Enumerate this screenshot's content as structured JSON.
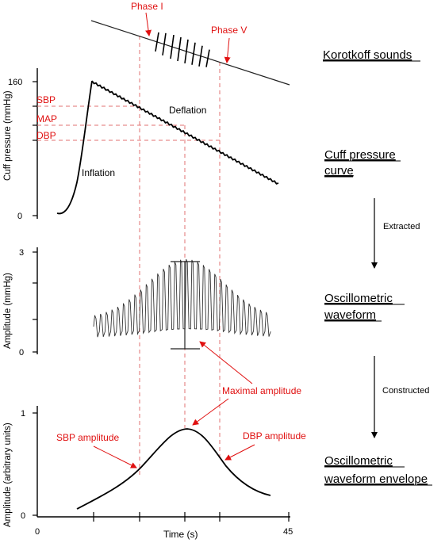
{
  "korotkoff": {
    "phase1_label": "Phase I",
    "phase5_label": "Phase V"
  },
  "cuff": {
    "ytick_160": "160",
    "ytick_0": "0",
    "ylabel": "Cuff pressure (mmHg)",
    "sbp_label": "SBP",
    "map_label": "MAP",
    "dbp_label": "DBP",
    "inflation_label": "Inflation",
    "deflation_label": "Deflation"
  },
  "oscillometric": {
    "ytick_3": "3",
    "ytick_0": "0",
    "ylabel": "Amplitude (mmHg)",
    "maximal_label": "Maximal amplitude"
  },
  "envelope": {
    "ytick_1": "1",
    "ytick_0": "0",
    "ylabel": "Amplitude (arbitrary units)",
    "sbp_amp_label": "SBP amplitude",
    "dbp_amp_label": "DBP amplitude"
  },
  "time_axis": {
    "x0_label": "0",
    "x45_label": "45",
    "xlabel": "Time (s)"
  },
  "right_labels": {
    "korotkoff": "Korotkoff sounds",
    "cuff_line1": "Cuff pressure",
    "cuff_line2": "curve",
    "extracted": "Extracted",
    "osc_line1": "Oscillometric",
    "osc_line2": "waveform",
    "constructed": "Constructed",
    "env_line1": "Oscillometric",
    "env_line2": "waveform envelope"
  },
  "colors": {
    "annotation_red": "#e01010",
    "dashed_red": "#e07070"
  }
}
